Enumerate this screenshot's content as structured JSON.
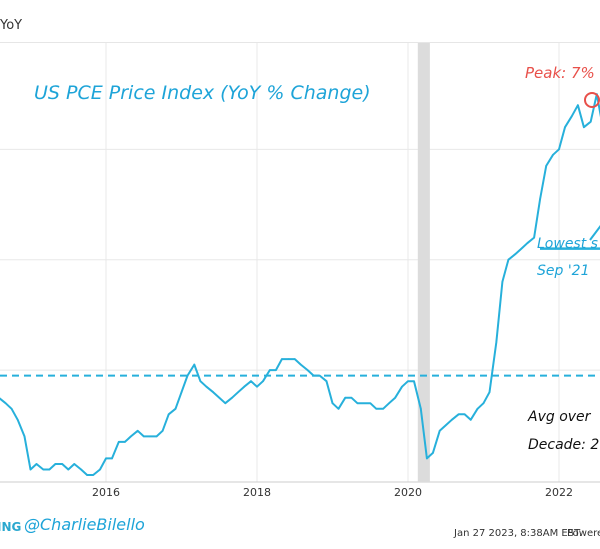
{
  "header": {
    "title": "YoY"
  },
  "footer": {
    "brand": "ING",
    "handle": "@CharlieBilello",
    "timestamp": "Jan 27 2023, 8:38AM EST.",
    "powered": "Powere"
  },
  "colors": {
    "line": "#27b0db",
    "annotation": "#1ea4d8",
    "peak": "#e8504a",
    "recession": "#dcdcdc",
    "grid": "#e8e8e8"
  },
  "annotations": {
    "title": "US PCE Price Index (YoY % Change)",
    "peak": "Peak: 7%",
    "lowest_line1": "Lowest s",
    "lowest_line2": "Sep '21",
    "avg_line1": "Avg over",
    "avg_line2": "Decade: 2"
  },
  "chart_data": {
    "type": "line",
    "title": "US PCE Price Index (YoY % Change)",
    "xlabel": "",
    "ylabel": "",
    "x_tick_labels": [
      "2016",
      "2018",
      "2020",
      "2022"
    ],
    "x_tick_positions": [
      2016,
      2018,
      2020,
      2022
    ],
    "x_range": [
      2014.5,
      2023.0
    ],
    "ylim": [
      -0.5,
      7.6
    ],
    "grid": true,
    "avg_line": 1.9,
    "lowest_line": 4.2,
    "recession_band": [
      2020.13,
      2020.29
    ],
    "series": [
      {
        "values": [
          {
            "x": 2014.5,
            "y": 1.6
          },
          {
            "x": 2014.58,
            "y": 1.5
          },
          {
            "x": 2014.67,
            "y": 1.4
          },
          {
            "x": 2014.75,
            "y": 1.3
          },
          {
            "x": 2014.83,
            "y": 1.1
          },
          {
            "x": 2014.92,
            "y": 0.8
          },
          {
            "x": 2015.0,
            "y": 0.2
          },
          {
            "x": 2015.08,
            "y": 0.3
          },
          {
            "x": 2015.17,
            "y": 0.2
          },
          {
            "x": 2015.25,
            "y": 0.2
          },
          {
            "x": 2015.33,
            "y": 0.3
          },
          {
            "x": 2015.42,
            "y": 0.3
          },
          {
            "x": 2015.5,
            "y": 0.2
          },
          {
            "x": 2015.58,
            "y": 0.3
          },
          {
            "x": 2015.67,
            "y": 0.2
          },
          {
            "x": 2015.75,
            "y": 0.1
          },
          {
            "x": 2015.83,
            "y": 0.1
          },
          {
            "x": 2015.92,
            "y": 0.2
          },
          {
            "x": 2016.0,
            "y": 0.4
          },
          {
            "x": 2016.08,
            "y": 0.4
          },
          {
            "x": 2016.17,
            "y": 0.7
          },
          {
            "x": 2016.25,
            "y": 0.7
          },
          {
            "x": 2016.33,
            "y": 0.8
          },
          {
            "x": 2016.42,
            "y": 0.9
          },
          {
            "x": 2016.5,
            "y": 0.8
          },
          {
            "x": 2016.58,
            "y": 0.8
          },
          {
            "x": 2016.67,
            "y": 0.8
          },
          {
            "x": 2016.75,
            "y": 0.9
          },
          {
            "x": 2016.83,
            "y": 1.2
          },
          {
            "x": 2016.92,
            "y": 1.3
          },
          {
            "x": 2017.0,
            "y": 1.6
          },
          {
            "x": 2017.08,
            "y": 1.9
          },
          {
            "x": 2017.17,
            "y": 2.1
          },
          {
            "x": 2017.25,
            "y": 1.8
          },
          {
            "x": 2017.33,
            "y": 1.7
          },
          {
            "x": 2017.42,
            "y": 1.6
          },
          {
            "x": 2017.5,
            "y": 1.5
          },
          {
            "x": 2017.58,
            "y": 1.4
          },
          {
            "x": 2017.67,
            "y": 1.5
          },
          {
            "x": 2017.75,
            "y": 1.6
          },
          {
            "x": 2017.83,
            "y": 1.7
          },
          {
            "x": 2017.92,
            "y": 1.8
          },
          {
            "x": 2018.0,
            "y": 1.7
          },
          {
            "x": 2018.08,
            "y": 1.8
          },
          {
            "x": 2018.17,
            "y": 2.0
          },
          {
            "x": 2018.25,
            "y": 2.0
          },
          {
            "x": 2018.33,
            "y": 2.2
          },
          {
            "x": 2018.42,
            "y": 2.2
          },
          {
            "x": 2018.5,
            "y": 2.2
          },
          {
            "x": 2018.58,
            "y": 2.1
          },
          {
            "x": 2018.67,
            "y": 2.0
          },
          {
            "x": 2018.75,
            "y": 1.9
          },
          {
            "x": 2018.83,
            "y": 1.9
          },
          {
            "x": 2018.92,
            "y": 1.8
          },
          {
            "x": 2019.0,
            "y": 1.4
          },
          {
            "x": 2019.08,
            "y": 1.3
          },
          {
            "x": 2019.17,
            "y": 1.5
          },
          {
            "x": 2019.25,
            "y": 1.5
          },
          {
            "x": 2019.33,
            "y": 1.4
          },
          {
            "x": 2019.42,
            "y": 1.4
          },
          {
            "x": 2019.5,
            "y": 1.4
          },
          {
            "x": 2019.58,
            "y": 1.3
          },
          {
            "x": 2019.67,
            "y": 1.3
          },
          {
            "x": 2019.75,
            "y": 1.4
          },
          {
            "x": 2019.83,
            "y": 1.5
          },
          {
            "x": 2019.92,
            "y": 1.7
          },
          {
            "x": 2020.0,
            "y": 1.8
          },
          {
            "x": 2020.08,
            "y": 1.8
          },
          {
            "x": 2020.17,
            "y": 1.3
          },
          {
            "x": 2020.25,
            "y": 0.4
          },
          {
            "x": 2020.33,
            "y": 0.5
          },
          {
            "x": 2020.42,
            "y": 0.9
          },
          {
            "x": 2020.5,
            "y": 1.0
          },
          {
            "x": 2020.58,
            "y": 1.1
          },
          {
            "x": 2020.67,
            "y": 1.2
          },
          {
            "x": 2020.75,
            "y": 1.2
          },
          {
            "x": 2020.83,
            "y": 1.1
          },
          {
            "x": 2020.92,
            "y": 1.3
          },
          {
            "x": 2021.0,
            "y": 1.4
          },
          {
            "x": 2021.08,
            "y": 1.6
          },
          {
            "x": 2021.17,
            "y": 2.5
          },
          {
            "x": 2021.25,
            "y": 3.6
          },
          {
            "x": 2021.33,
            "y": 4.0
          },
          {
            "x": 2021.42,
            "y": 4.1
          },
          {
            "x": 2021.5,
            "y": 4.2
          },
          {
            "x": 2021.58,
            "y": 4.3
          },
          {
            "x": 2021.67,
            "y": 4.4
          },
          {
            "x": 2021.75,
            "y": 5.1
          },
          {
            "x": 2021.83,
            "y": 5.7
          },
          {
            "x": 2021.92,
            "y": 5.9
          },
          {
            "x": 2022.0,
            "y": 6.0
          },
          {
            "x": 2022.08,
            "y": 6.4
          },
          {
            "x": 2022.17,
            "y": 6.6
          },
          {
            "x": 2022.25,
            "y": 6.8
          },
          {
            "x": 2022.33,
            "y": 6.4
          },
          {
            "x": 2022.42,
            "y": 6.5
          },
          {
            "x": 2022.5,
            "y": 7.0
          },
          {
            "x": 2022.58,
            "y": 6.4
          },
          {
            "x": 2022.67,
            "y": 6.3
          }
        ]
      }
    ]
  }
}
